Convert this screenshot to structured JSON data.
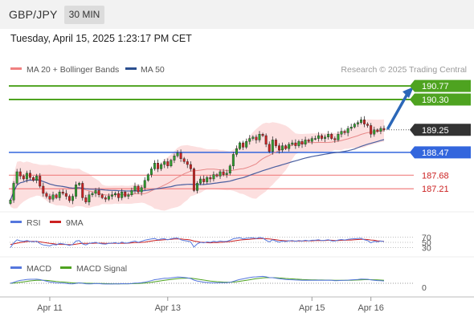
{
  "header": {
    "symbol": "GBP/JPY",
    "timeframe": "30 MIN",
    "datetime": "Tuesday, April 15, 2025 1:23:17 PM CET"
  },
  "colors": {
    "resistance": "#4ea320",
    "support": "#f08080",
    "pivot": "#3366dd",
    "current": "#333333",
    "bull": "#2e9e2e",
    "bear": "#cc2222",
    "ma50": "#4a5fa0",
    "ma20": "#e88888",
    "band": "#fbd7d7",
    "rsi": "#5577dd",
    "rsi_ma": "#cc2222",
    "macd": "#5577dd",
    "macd_signal": "#4ea320",
    "arrow": "#2b67b8"
  },
  "chart_data": [
    {
      "type": "candlestick",
      "legend": [
        {
          "name": "MA 20 + Bollinger Bands",
          "color": "#f08080"
        },
        {
          "name": "MA 50",
          "color": "#2b4f8f"
        }
      ],
      "watermark": "Research © 2025 Trading Central",
      "ylim": [
        186.55,
        191.05
      ],
      "x_ticks": [
        {
          "label": "Apr 11",
          "index": 12
        },
        {
          "label": "Apr 13",
          "index": 48
        },
        {
          "label": "Apr 15",
          "index": 92
        },
        {
          "label": "Apr 16",
          "index": 110
        }
      ],
      "levels": [
        {
          "label": "190.77",
          "value": 190.77,
          "kind": "resistance"
        },
        {
          "label": "190.30",
          "value": 190.3,
          "kind": "resistance"
        },
        {
          "label": "189.25",
          "value": 189.25,
          "kind": "current"
        },
        {
          "label": "188.47",
          "value": 188.47,
          "kind": "pivot"
        },
        {
          "label": "187.68",
          "value": 187.68,
          "kind": "support"
        },
        {
          "label": "187.21",
          "value": 187.21,
          "kind": "support"
        }
      ],
      "closes": [
        186.82,
        187.4,
        187.8,
        187.65,
        187.55,
        187.75,
        187.6,
        187.5,
        187.65,
        187.3,
        187.05,
        186.95,
        186.85,
        187.0,
        186.9,
        187.1,
        187.05,
        186.95,
        186.8,
        186.95,
        187.35,
        187.4,
        186.9,
        186.75,
        187.0,
        187.05,
        187.15,
        187.0,
        186.9,
        186.85,
        186.95,
        187.0,
        187.05,
        186.9,
        187.1,
        186.95,
        187.0,
        187.15,
        187.3,
        187.1,
        187.25,
        187.5,
        187.7,
        187.9,
        188.1,
        187.9,
        188.05,
        188.15,
        188.0,
        188.2,
        188.35,
        188.45,
        188.25,
        188.15,
        188.05,
        187.9,
        187.15,
        187.4,
        187.55,
        187.45,
        187.6,
        187.55,
        187.7,
        187.65,
        187.8,
        187.7,
        187.75,
        188.0,
        188.4,
        188.6,
        188.8,
        188.65,
        188.85,
        188.95,
        189.0,
        188.9,
        189.1,
        189.05,
        188.75,
        188.5,
        188.9,
        188.7,
        188.55,
        188.7,
        188.6,
        188.75,
        188.8,
        188.7,
        188.85,
        188.75,
        188.9,
        188.85,
        188.95,
        188.95,
        189.05,
        188.95,
        189.0,
        189.1,
        188.95,
        188.9,
        189.1,
        189.2,
        189.15,
        189.3,
        189.35,
        189.45,
        189.5,
        189.6,
        189.45,
        189.4,
        189.1,
        189.25,
        189.2,
        189.3,
        189.25
      ]
    },
    {
      "type": "line",
      "name": "RSI",
      "legend": [
        {
          "name": "RSI",
          "color": "#5577dd"
        },
        {
          "name": "9MA",
          "color": "#cc2222"
        }
      ],
      "ylim": [
        0,
        100
      ],
      "y_ticks": [
        70,
        50,
        30
      ],
      "values": [
        30,
        48,
        60,
        56,
        54,
        57,
        54,
        52,
        55,
        45,
        40,
        38,
        36,
        42,
        40,
        46,
        44,
        42,
        38,
        42,
        55,
        57,
        44,
        40,
        46,
        48,
        50,
        46,
        44,
        43,
        46,
        47,
        49,
        45,
        51,
        47,
        48,
        52,
        55,
        50,
        54,
        58,
        61,
        63,
        65,
        60,
        63,
        64,
        60,
        64,
        66,
        67,
        60,
        57,
        55,
        52,
        32,
        44,
        50,
        48,
        52,
        50,
        54,
        52,
        55,
        53,
        54,
        58,
        64,
        66,
        68,
        63,
        66,
        67,
        68,
        65,
        69,
        67,
        58,
        52,
        60,
        55,
        51,
        55,
        53,
        56,
        57,
        54,
        57,
        55,
        58,
        56,
        58,
        58,
        60,
        57,
        58,
        60,
        56,
        55,
        59,
        61,
        59,
        62,
        63,
        64,
        65,
        66,
        60,
        57,
        48,
        54,
        52,
        55,
        53
      ],
      "ma_values": [
        42,
        44,
        47,
        49,
        51,
        53,
        54,
        54,
        53,
        52,
        50,
        48,
        46,
        45,
        43,
        42,
        42,
        42,
        41,
        41,
        43,
        45,
        46,
        46,
        46,
        46,
        47,
        47,
        47,
        46,
        46,
        46,
        47,
        46,
        47,
        46,
        47,
        48,
        49,
        49,
        50,
        51,
        53,
        55,
        57,
        58,
        59,
        60,
        61,
        62,
        63,
        63,
        63,
        62,
        61,
        59,
        55,
        53,
        51,
        50,
        49,
        48,
        49,
        49,
        50,
        51,
        52,
        53,
        55,
        57,
        59,
        60,
        61,
        62,
        63,
        64,
        65,
        65,
        64,
        63,
        62,
        60,
        58,
        57,
        56,
        56,
        55,
        55,
        55,
        55,
        56,
        56,
        56,
        57,
        57,
        57,
        57,
        58,
        58,
        57,
        57,
        58,
        58,
        59,
        59,
        60,
        61,
        62,
        62,
        61,
        59,
        58,
        56,
        55,
        54
      ]
    },
    {
      "type": "line",
      "name": "MACD",
      "legend": [
        {
          "name": "MACD",
          "color": "#5577dd"
        },
        {
          "name": "MACD Signal",
          "color": "#4ea320"
        }
      ],
      "zero_label": "0"
    }
  ]
}
